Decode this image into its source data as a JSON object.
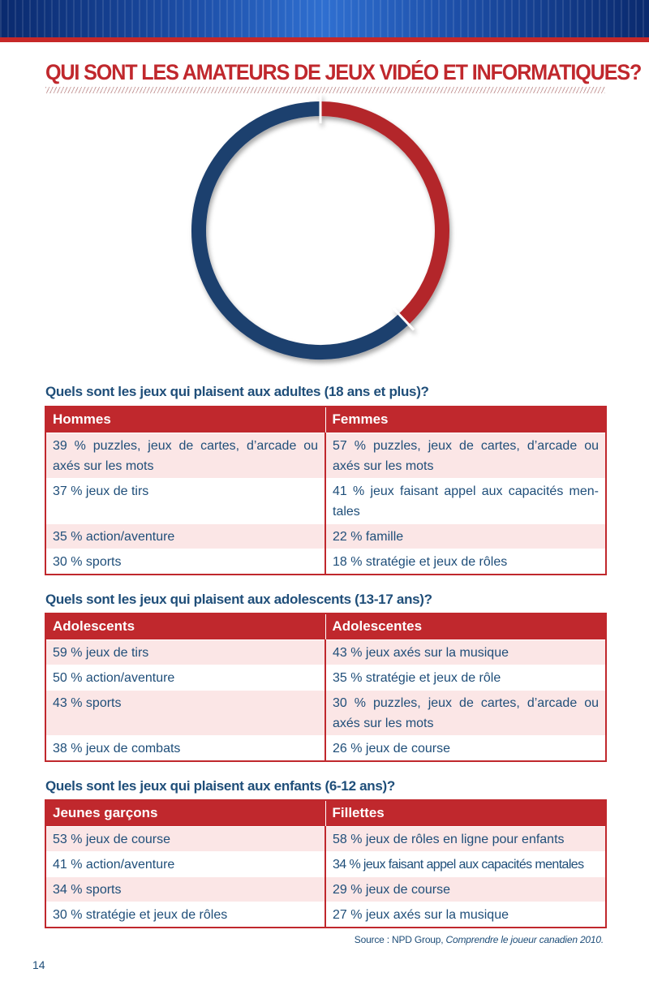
{
  "page": {
    "title": "QUI SONT LES AMATEURS DE JEUX VIDÉO ET INFORMATIQUES?",
    "page_number": "14",
    "source_prefix": "Source : NPD Group, ",
    "source_title": "Comprendre le joueur canadien 2010."
  },
  "colors": {
    "accent_red": "#c0282d",
    "navy": "#1f4e79",
    "donut_red": "#b3252b",
    "donut_blue": "#1e3f6e",
    "row_tint": "#fbe6e6"
  },
  "chart_data": {
    "type": "pie",
    "style": "donut",
    "values": [
      38,
      62
    ],
    "colors": [
      "#b3252b",
      "#1e3f6e"
    ]
  },
  "sections": [
    {
      "heading": "Quels sont les jeux qui plaisent aux adultes (18 ans et plus)?",
      "columns": [
        "Hommes",
        "Femmes"
      ],
      "rows": [
        [
          "39 % puzzles, jeux de cartes, d’arcade ou axés sur les mots",
          "57 % puzzles, jeux de cartes, d’arcade ou axés sur les mots"
        ],
        [
          "37 % jeux de tirs",
          "41 % jeux faisant appel aux capacités men-tales"
        ],
        [
          "35 % action/aventure",
          "22 % famille"
        ],
        [
          "30 % sports",
          "18 % stratégie et jeux de rôles"
        ]
      ]
    },
    {
      "heading": "Quels sont les jeux qui plaisent aux adolescents (13-17 ans)?",
      "columns": [
        "Adolescents",
        "Adolescentes"
      ],
      "rows": [
        [
          "59 % jeux de tirs",
          "43 % jeux axés sur la musique"
        ],
        [
          "50 % action/aventure",
          "35 % stratégie et jeux de rôle"
        ],
        [
          "43 % sports",
          "30 % puzzles, jeux de cartes, d’arcade ou axés sur les mots"
        ],
        [
          "38 % jeux de combats",
          "26 % jeux de course"
        ]
      ]
    },
    {
      "heading": "Quels sont les jeux qui plaisent aux enfants (6-12 ans)?",
      "columns": [
        "Jeunes garçons",
        "Fillettes"
      ],
      "rows": [
        [
          "53 % jeux de course",
          "58 % jeux de rôles en ligne pour enfants"
        ],
        [
          "41 % action/aventure",
          "34 % jeux faisant appel aux capacités mentales"
        ],
        [
          "34 % sports",
          "29 % jeux de course"
        ],
        [
          "30 % stratégie et jeux de rôles",
          "27 % jeux axés sur la musique"
        ]
      ]
    }
  ]
}
